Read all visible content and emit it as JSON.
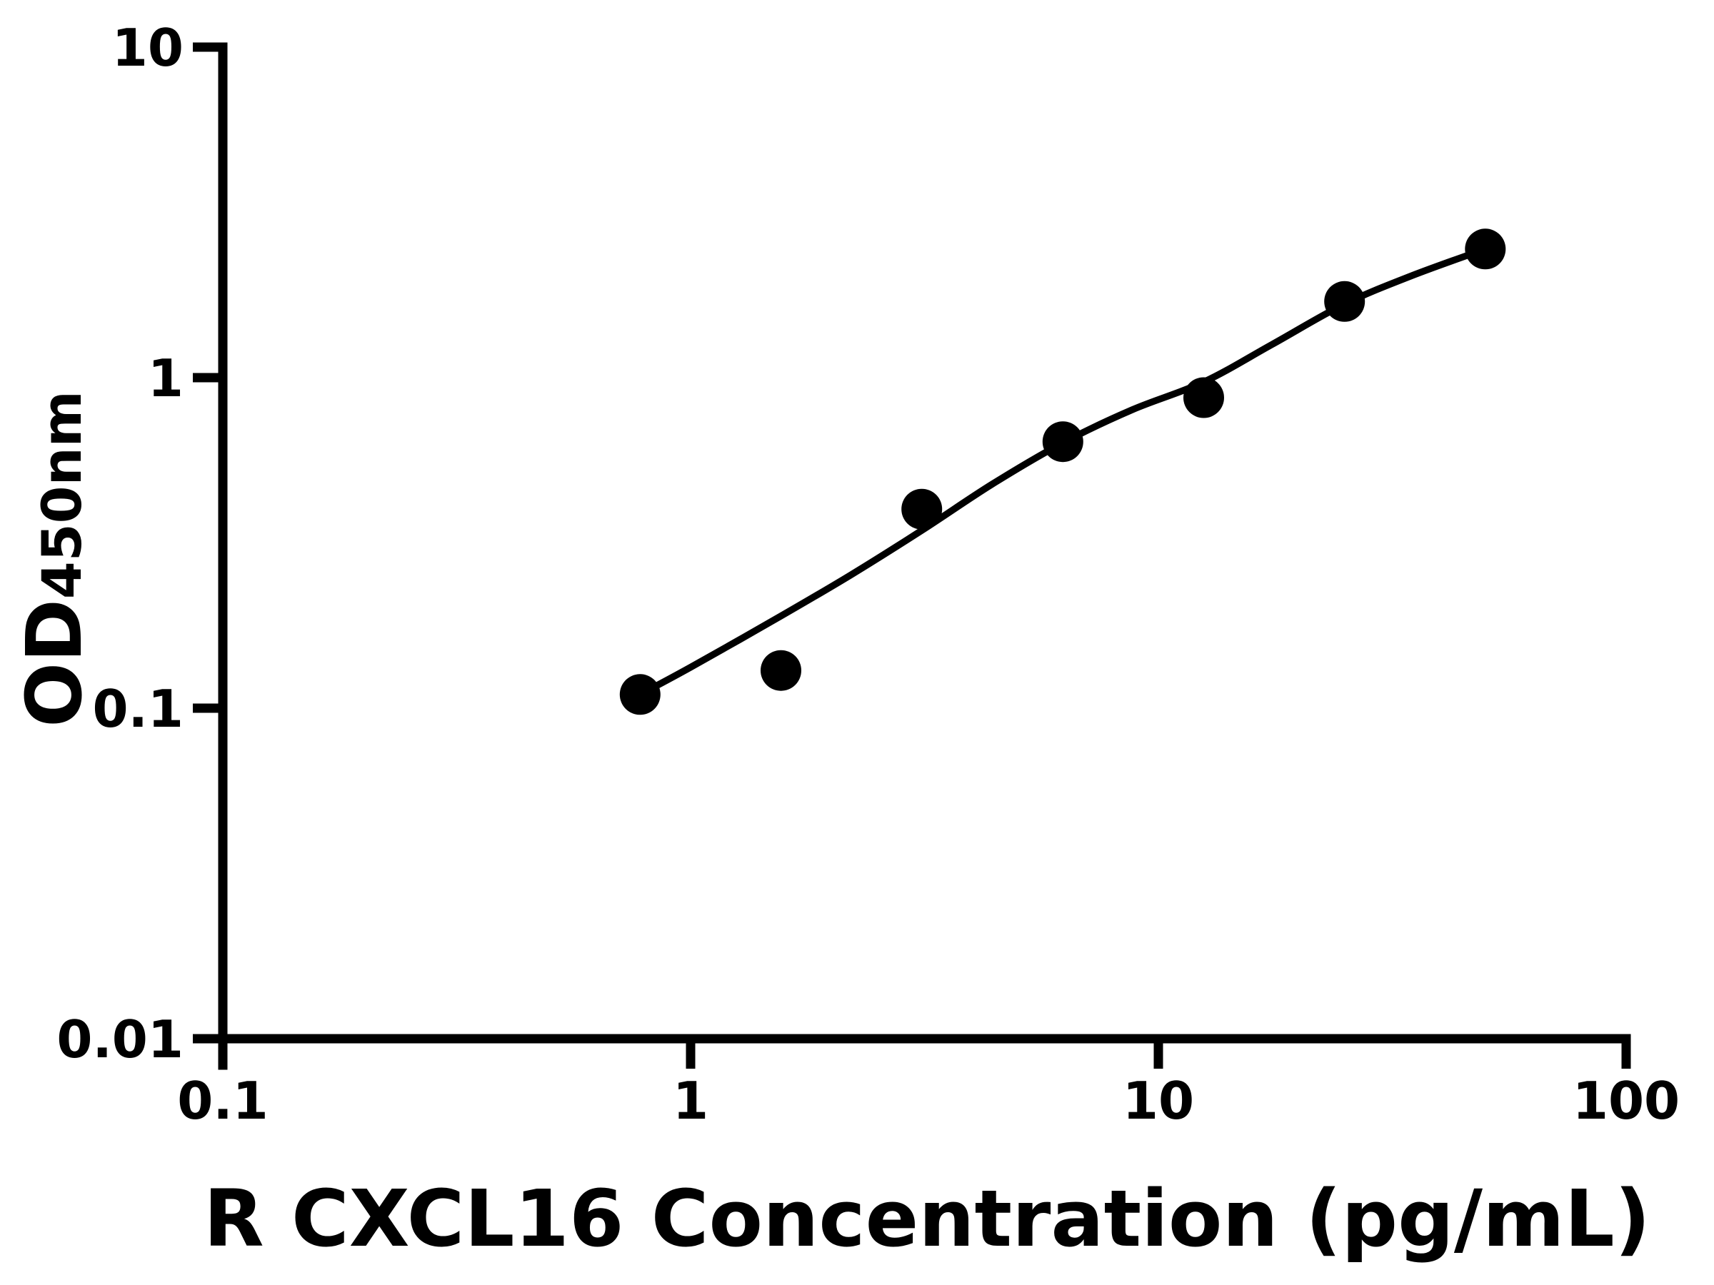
{
  "figure": {
    "background_color": "#ffffff",
    "foreground_color": "#000000"
  },
  "chart_data": {
    "type": "scatter",
    "title": "",
    "xlabel": "R CXCL16 Concentration (pg/mL)",
    "ylabel": "OD450nm",
    "ylabel_main": "OD",
    "ylabel_sub": "450nm",
    "x_scale": "log",
    "y_scale": "log",
    "xlim": [
      0.1,
      100
    ],
    "ylim": [
      0.01,
      10
    ],
    "grid": false,
    "legend": false,
    "x_ticks": [
      {
        "value": 0.1,
        "label": "0.1"
      },
      {
        "value": 1,
        "label": "1"
      },
      {
        "value": 10,
        "label": "10"
      },
      {
        "value": 100,
        "label": "100"
      }
    ],
    "y_ticks": [
      {
        "value": 0.01,
        "label": "0.01"
      },
      {
        "value": 0.1,
        "label": "0.1"
      },
      {
        "value": 1,
        "label": "1"
      },
      {
        "value": 10,
        "label": "10"
      }
    ],
    "series": [
      {
        "name": "standard-points",
        "kind": "scatter",
        "marker": "filled-circle",
        "color": "#000000",
        "points": [
          {
            "x": 0.78,
            "y": 0.11
          },
          {
            "x": 1.56,
            "y": 0.13
          },
          {
            "x": 3.12,
            "y": 0.4
          },
          {
            "x": 6.25,
            "y": 0.64
          },
          {
            "x": 12.5,
            "y": 0.87
          },
          {
            "x": 25,
            "y": 1.7
          },
          {
            "x": 50,
            "y": 2.45
          }
        ]
      },
      {
        "name": "fit-curve",
        "kind": "line",
        "color": "#000000",
        "points": [
          {
            "x": 0.78,
            "y": 0.11
          },
          {
            "x": 1.0,
            "y": 0.133
          },
          {
            "x": 1.56,
            "y": 0.19
          },
          {
            "x": 2.2,
            "y": 0.253
          },
          {
            "x": 3.12,
            "y": 0.345
          },
          {
            "x": 4.4,
            "y": 0.475
          },
          {
            "x": 6.25,
            "y": 0.635
          },
          {
            "x": 8.8,
            "y": 0.8
          },
          {
            "x": 12.5,
            "y": 0.97
          },
          {
            "x": 17.5,
            "y": 1.26
          },
          {
            "x": 25,
            "y": 1.67
          },
          {
            "x": 35,
            "y": 2.04
          },
          {
            "x": 50,
            "y": 2.45
          }
        ]
      }
    ]
  }
}
